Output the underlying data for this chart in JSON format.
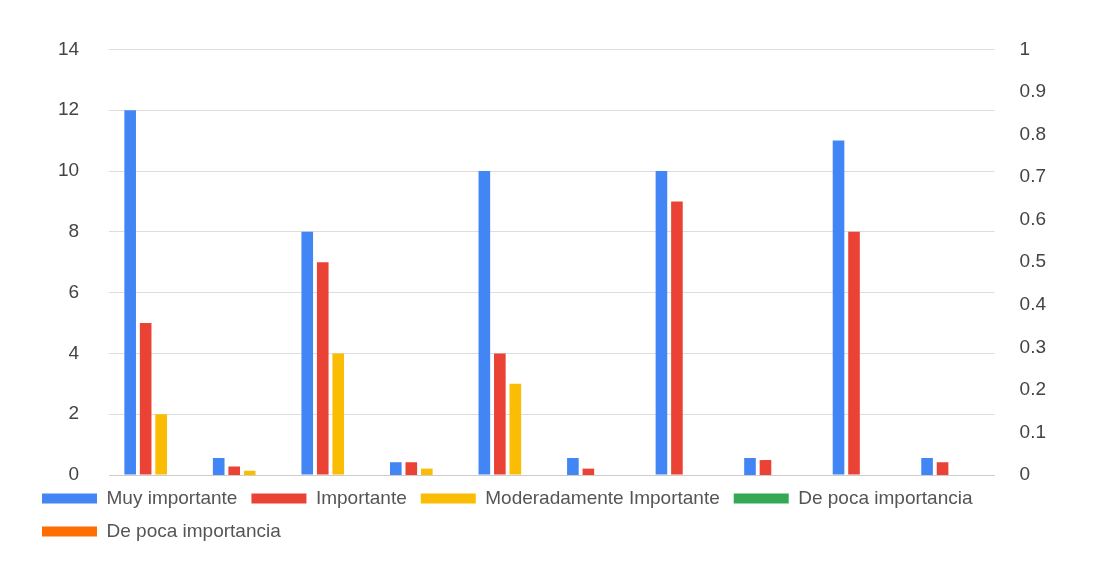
{
  "chart_data": {
    "type": "bar",
    "categories": [
      null,
      null,
      null,
      null,
      null,
      null,
      null,
      null,
      null,
      null
    ],
    "series": [
      {
        "name": "Muy importante",
        "color": "#4285f4",
        "values": [
          12,
          null,
          8,
          null,
          10,
          null,
          10,
          null,
          11,
          null
        ]
      },
      {
        "name": "Importante",
        "color": "#ea4335",
        "values": [
          5,
          null,
          7,
          null,
          4,
          null,
          9,
          null,
          8,
          null
        ]
      },
      {
        "name": "Moderadamente Importante",
        "color": "#fbbc04",
        "values": [
          2,
          null,
          4,
          null,
          3,
          null,
          null,
          null,
          null,
          null
        ]
      },
      {
        "name": "De poca importancia",
        "color": "#34a853",
        "values": [
          null,
          null,
          null,
          null,
          null,
          null,
          null,
          null,
          null,
          null
        ]
      },
      {
        "color": "#4285f4",
        "axis": "y2",
        "values": [
          null,
          0.04,
          null,
          0.03,
          null,
          0.04,
          null,
          0.04,
          null,
          0.04
        ]
      },
      {
        "color": "#ea4335",
        "axis": "y2",
        "values": [
          null,
          0.02,
          null,
          0.03,
          null,
          0.015,
          null,
          0.035,
          null,
          0.03
        ]
      },
      {
        "color": "#fbbc04",
        "axis": "y2",
        "values": [
          null,
          0.01,
          null,
          0.015,
          null,
          null,
          null,
          null,
          null,
          null
        ]
      },
      {
        "name": "De poca importancia",
        "type": "line",
        "color": "#ff6d01",
        "axis": "y2",
        "values": [
          null,
          null,
          null,
          null,
          null,
          null,
          null,
          null,
          null,
          null
        ]
      }
    ],
    "ylim": [
      0,
      14
    ],
    "yticks": [
      0,
      2,
      4,
      6,
      8,
      10,
      12,
      14
    ],
    "y2lim": [
      0,
      1
    ],
    "y2ticks": [
      0,
      0.1,
      0.2,
      0.3,
      0.4,
      0.5,
      0.6,
      0.7,
      0.8,
      0.9,
      1
    ],
    "grid": "y",
    "legend": "bottom"
  }
}
